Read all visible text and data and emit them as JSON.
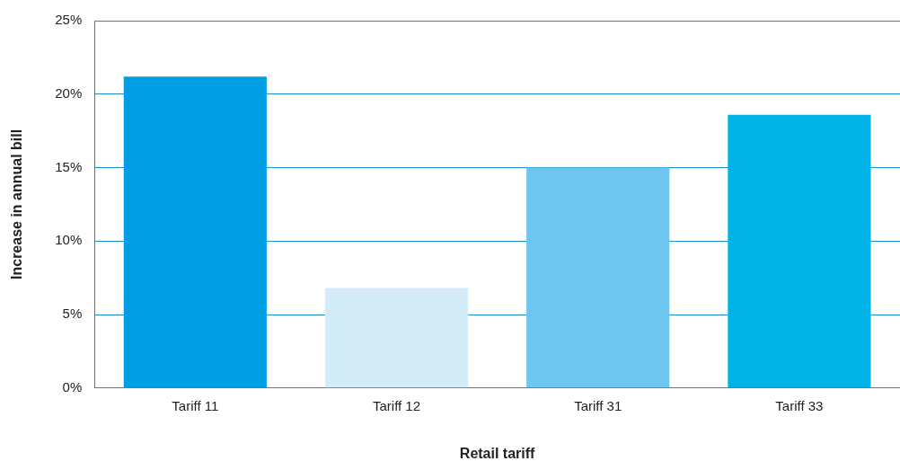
{
  "chart_data": {
    "type": "bar",
    "xlabel": "Retail tariff",
    "ylabel": "Increase in annual bill",
    "categories": [
      "Tariff 11",
      "Tariff 12",
      "Tariff 31",
      "Tariff 33"
    ],
    "values": [
      21.2,
      6.8,
      15.0,
      18.6
    ],
    "colors": [
      "#009fe3",
      "#d4ebf8",
      "#6ec6f0",
      "#00b2e6"
    ],
    "ylim": [
      0,
      25
    ],
    "yticks": [
      {
        "value": 0,
        "label": "0%"
      },
      {
        "value": 5,
        "label": "5%"
      },
      {
        "value": 10,
        "label": "10%"
      },
      {
        "value": 15,
        "label": "15%"
      },
      {
        "value": 20,
        "label": "20%"
      },
      {
        "value": 25,
        "label": "25%"
      }
    ],
    "grid": "y"
  }
}
